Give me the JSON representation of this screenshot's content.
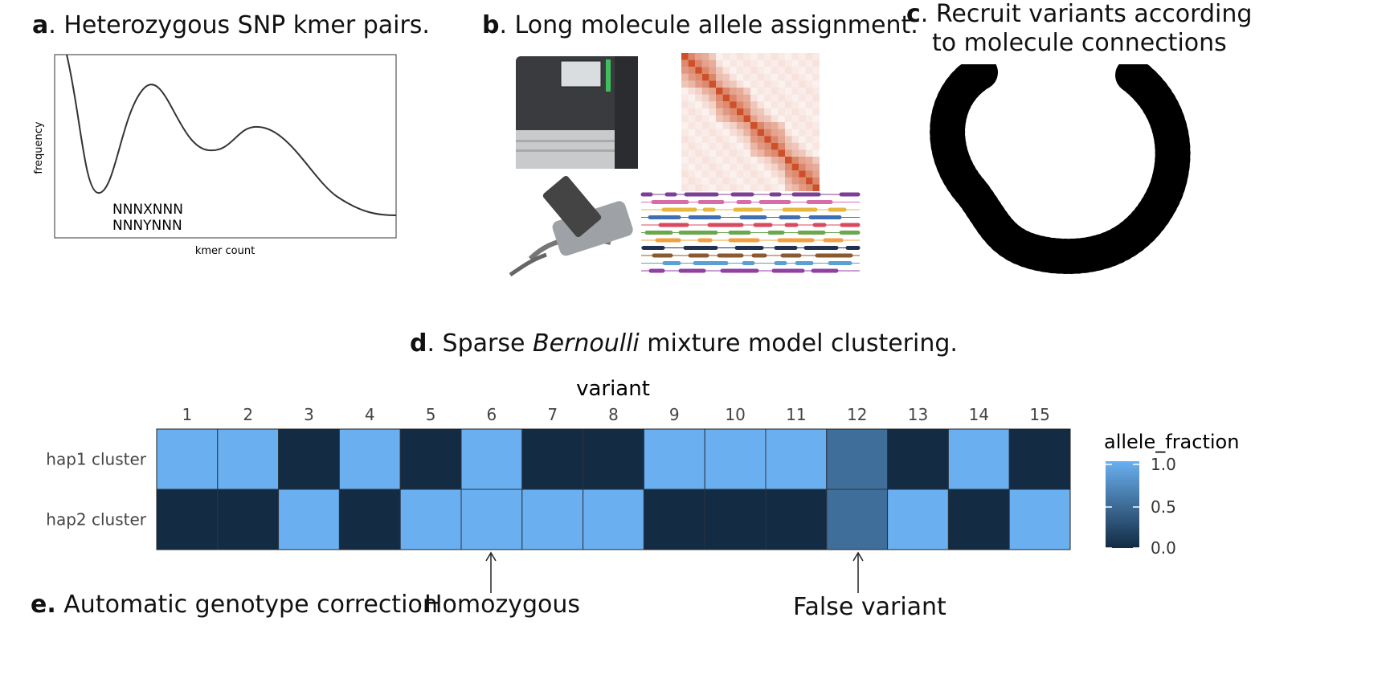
{
  "panel_a": {
    "letter": "a",
    "title": ". Heterozygous SNP kmer pairs.",
    "ylabel": "frequency",
    "xlabel": "kmer count",
    "kmer1": "NNNXNNN",
    "kmer2": "NNNYNNN"
  },
  "panel_b": {
    "letter": "b",
    "title": ". Long molecule allele assignment."
  },
  "panel_c": {
    "letter": "c",
    "title_line1": ". Recruit variants according",
    "title_line2": "to molecule connections"
  },
  "panel_d": {
    "letter": "d",
    "title_pre": ". Sparse ",
    "title_italic": "Bernoulli",
    "title_post": " mixture model clustering."
  },
  "panel_e": {
    "letter": "e.",
    "title": " Automatic genotype correction",
    "annotation_homozygous": "Homozygous",
    "annotation_false": "False variant"
  },
  "chart_data": {
    "type": "heatmap",
    "xlabel": "variant",
    "x": [
      "1",
      "2",
      "3",
      "4",
      "5",
      "6",
      "7",
      "8",
      "9",
      "10",
      "11",
      "12",
      "13",
      "14",
      "15"
    ],
    "y": [
      "hap1 cluster",
      "hap2 cluster"
    ],
    "values": [
      [
        1,
        1,
        0,
        1,
        0,
        1,
        0,
        0,
        1,
        1,
        1,
        0.5,
        0,
        1,
        0
      ],
      [
        0,
        0,
        1,
        0,
        1,
        1,
        1,
        1,
        0,
        0,
        0,
        0.5,
        1,
        0,
        1
      ]
    ],
    "legend_title": "allele_fraction",
    "legend_ticks": [
      "1.0",
      "0.5",
      "0.0"
    ],
    "color_low": "#132B43",
    "color_high": "#6AB0F0"
  },
  "colors": {
    "heat_low": "#132B43",
    "heat_high": "#6AB0F0"
  }
}
